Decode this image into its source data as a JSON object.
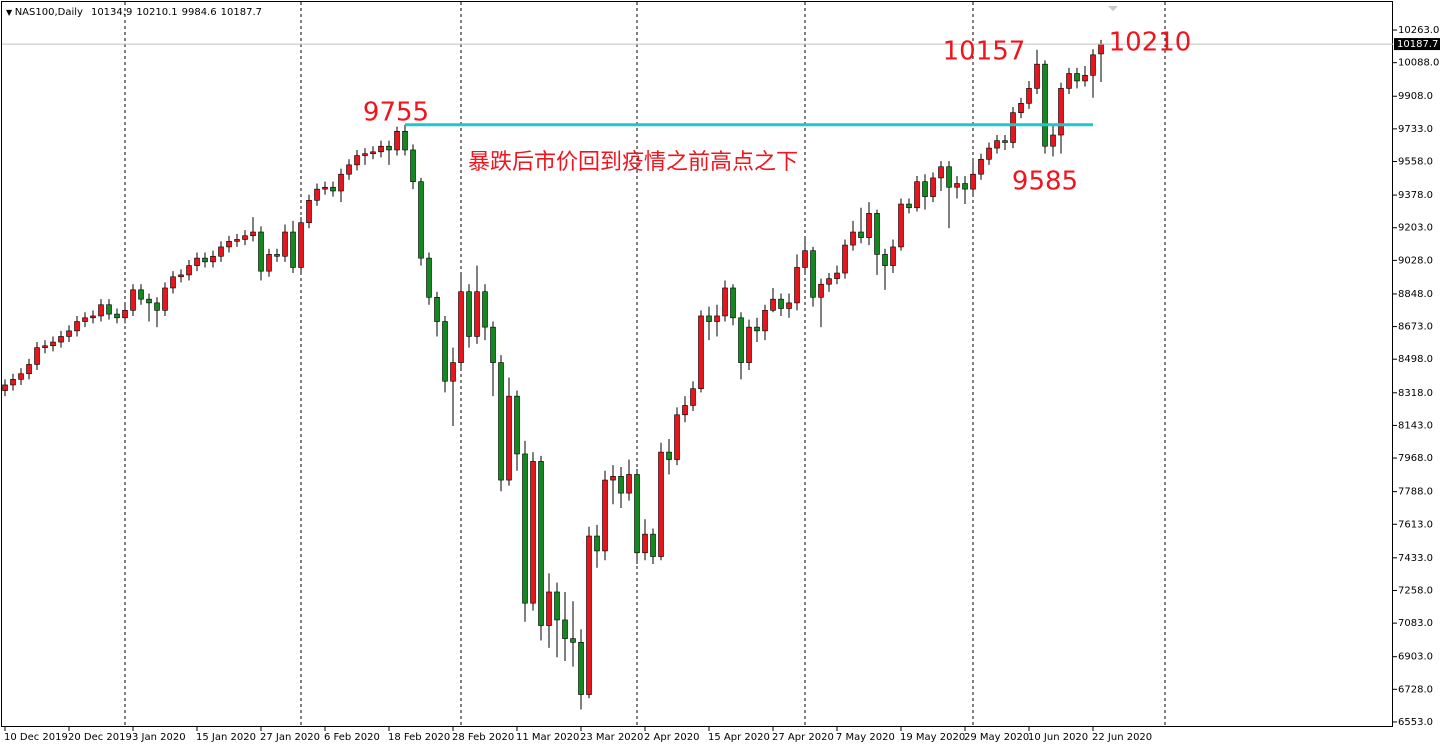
{
  "chart_data": {
    "type": "candlestick",
    "symbol": "NAS100,Daily",
    "categories": [
      "10 Dec 2019",
      null,
      null,
      null,
      null,
      null,
      null,
      null,
      "20 Dec 2019",
      null,
      null,
      null,
      null,
      null,
      null,
      null,
      "3 Jan 2020",
      null,
      null,
      null,
      null,
      null,
      null,
      null,
      "15 Jan 2020",
      null,
      null,
      null,
      null,
      null,
      null,
      null,
      "27 Jan 2020",
      null,
      null,
      null,
      null,
      null,
      null,
      null,
      "6 Feb 2020",
      null,
      null,
      null,
      null,
      null,
      null,
      null,
      "18 Feb 2020",
      null,
      null,
      null,
      null,
      null,
      null,
      null,
      "28 Feb 2020",
      null,
      null,
      null,
      null,
      null,
      null,
      null,
      "11 Mar 2020",
      null,
      null,
      null,
      null,
      null,
      null,
      null,
      "23 Mar 2020",
      null,
      null,
      null,
      null,
      null,
      null,
      null,
      "2 Apr 2020",
      null,
      null,
      null,
      null,
      null,
      null,
      null,
      "15 Apr 2020",
      null,
      null,
      null,
      null,
      null,
      null,
      null,
      "27 Apr 2020",
      null,
      null,
      null,
      null,
      null,
      null,
      null,
      "7 May 2020",
      null,
      null,
      null,
      null,
      null,
      null,
      null,
      "19 May 2020",
      null,
      null,
      null,
      null,
      null,
      null,
      null,
      "29 May 2020",
      null,
      null,
      null,
      null,
      null,
      null,
      null,
      "10 Jun 2020",
      null,
      null,
      null,
      null,
      null,
      null,
      null,
      "22 Jun 2020",
      null
    ],
    "open": [
      8330,
      8360,
      8390,
      8420,
      8470,
      8560,
      8570,
      8590,
      8620,
      8650,
      8700,
      8720,
      8730,
      8790,
      8740,
      8720,
      8760,
      8870,
      8820,
      8800,
      8760,
      8880,
      8940,
      8950,
      9000,
      9040,
      9020,
      9050,
      9100,
      9130,
      9140,
      9160,
      9180,
      8970,
      9060,
      9050,
      9180,
      8990,
      9230,
      9350,
      9410,
      9420,
      9400,
      9490,
      9540,
      9590,
      9600,
      9610,
      9640,
      9620,
      9720,
      9620,
      9450,
      9040,
      8830,
      8700,
      8380,
      8480,
      8860,
      8620,
      8860,
      8670,
      8480,
      7850,
      8300,
      7990,
      7190,
      7950,
      7070,
      7250,
      7100,
      7000,
      6980,
      6700,
      7550,
      7470,
      7850,
      7870,
      7780,
      7880,
      7460,
      7560,
      7440,
      8000,
      7960,
      8200,
      8250,
      8340,
      8730,
      8700,
      8730,
      8880,
      8720,
      8480,
      8670,
      8650,
      8760,
      8820,
      8770,
      8800,
      8990,
      9080,
      8830,
      8900,
      8930,
      8960,
      9110,
      9180,
      9150,
      9280,
      9060,
      9000,
      9100,
      9330,
      9310,
      9450,
      9370,
      9470,
      9530,
      9420,
      9440,
      9410,
      9490,
      9570,
      9630,
      9670,
      9660,
      9820,
      9870,
      9950,
      10080,
      9640,
      9700,
      9950,
      10030,
      9990,
      10020,
      10134.9
    ],
    "high": [
      8390,
      8420,
      8450,
      8500,
      8590,
      8600,
      8620,
      8650,
      8680,
      8730,
      8750,
      8760,
      8820,
      8820,
      8770,
      8790,
      8900,
      8900,
      8850,
      8830,
      8910,
      8970,
      8980,
      9030,
      9070,
      9070,
      9080,
      9130,
      9160,
      9170,
      9190,
      9260,
      9210,
      9090,
      9090,
      9220,
      9240,
      9260,
      9380,
      9440,
      9450,
      9450,
      9520,
      9570,
      9620,
      9630,
      9640,
      9670,
      9670,
      9745,
      9755,
      9650,
      9470,
      9070,
      8860,
      8730,
      8560,
      8950,
      8900,
      9000,
      8900,
      8700,
      8520,
      8400,
      8330,
      8060,
      8000,
      7980,
      7350,
      7300,
      7250,
      7200,
      7050,
      7600,
      7610,
      7900,
      7930,
      7920,
      7960,
      7910,
      7640,
      7590,
      8050,
      8070,
      8240,
      8300,
      8380,
      8760,
      8780,
      8790,
      8920,
      8900,
      8750,
      8710,
      8720,
      8790,
      8880,
      8850,
      8850,
      9060,
      9150,
      9100,
      8930,
      8960,
      9000,
      9140,
      9240,
      9310,
      9340,
      9300,
      9090,
      9140,
      9360,
      9360,
      9480,
      9490,
      9500,
      9560,
      9560,
      9480,
      9480,
      9560,
      9600,
      9660,
      9700,
      9700,
      9850,
      9900,
      9990,
      10157,
      10100,
      9760,
      9980,
      10060,
      10060,
      10070,
      10160,
      10210.1
    ],
    "low": [
      8300,
      8330,
      8360,
      8390,
      8440,
      8530,
      8540,
      8560,
      8590,
      8620,
      8670,
      8690,
      8700,
      8710,
      8690,
      8690,
      8730,
      8790,
      8700,
      8670,
      8730,
      8850,
      8910,
      8920,
      8970,
      8990,
      8990,
      9020,
      9070,
      9100,
      9110,
      9130,
      8920,
      8940,
      9020,
      9020,
      8960,
      8960,
      9200,
      9320,
      9380,
      9370,
      9340,
      9460,
      9510,
      9540,
      9570,
      9580,
      9540,
      9590,
      9590,
      9410,
      9000,
      8790,
      8620,
      8320,
      8140,
      8450,
      8560,
      8580,
      8600,
      8300,
      7790,
      7820,
      7900,
      7090,
      7150,
      6990,
      6950,
      6900,
      6880,
      6850,
      6620,
      6680,
      7380,
      7420,
      7720,
      7700,
      7740,
      7400,
      7420,
      7400,
      7420,
      7880,
      7930,
      8160,
      8220,
      8320,
      8600,
      8620,
      8700,
      8680,
      8390,
      8440,
      8590,
      8600,
      8750,
      8730,
      8720,
      8760,
      8950,
      8780,
      8670,
      8860,
      8900,
      8930,
      9080,
      9120,
      9110,
      8950,
      8870,
      8960,
      9080,
      9280,
      9290,
      9300,
      9340,
      9400,
      9200,
      9360,
      9330,
      9380,
      9460,
      9540,
      9600,
      9620,
      9630,
      9790,
      9840,
      9920,
      9600,
      9585,
      9600,
      9920,
      9950,
      9960,
      9900,
      9984.6
    ],
    "close": [
      8360,
      8390,
      8420,
      8470,
      8560,
      8570,
      8590,
      8620,
      8650,
      8700,
      8720,
      8730,
      8790,
      8740,
      8720,
      8760,
      8870,
      8820,
      8800,
      8760,
      8880,
      8940,
      8950,
      9000,
      9040,
      9020,
      9050,
      9100,
      9130,
      9140,
      9160,
      9180,
      8970,
      9060,
      9050,
      9180,
      8990,
      9230,
      9350,
      9410,
      9420,
      9400,
      9490,
      9540,
      9590,
      9600,
      9610,
      9640,
      9620,
      9720,
      9620,
      9450,
      9040,
      8830,
      8700,
      8380,
      8480,
      8860,
      8620,
      8860,
      8670,
      8480,
      7850,
      8300,
      7990,
      7190,
      7950,
      7070,
      7250,
      7100,
      7000,
      6980,
      6700,
      7550,
      7470,
      7850,
      7870,
      7780,
      7880,
      7460,
      7560,
      7440,
      8000,
      7960,
      8200,
      8250,
      8340,
      8730,
      8700,
      8730,
      8880,
      8720,
      8480,
      8670,
      8650,
      8760,
      8820,
      8770,
      8800,
      8990,
      9080,
      8830,
      8900,
      8930,
      8960,
      9110,
      9180,
      9150,
      9280,
      9060,
      9000,
      9100,
      9330,
      9310,
      9450,
      9370,
      9470,
      9530,
      9420,
      9440,
      9410,
      9490,
      9570,
      9630,
      9670,
      9660,
      9820,
      9870,
      9950,
      10080,
      9640,
      9700,
      9950,
      10030,
      9990,
      10020,
      10130,
      10187.7
    ],
    "up_color": "#e8161c",
    "down_color": "#13891f",
    "wick_color": "#000000",
    "ylim": [
      6526,
      10424
    ],
    "yticks": [
      {
        "value": 10263,
        "label": "10263.0"
      },
      {
        "value": 10088,
        "label": "10088.0"
      },
      {
        "value": 9908,
        "label": "9908.0"
      },
      {
        "value": 9733,
        "label": "9733.0"
      },
      {
        "value": 9558,
        "label": "9558.0"
      },
      {
        "value": 9378,
        "label": "9378.0"
      },
      {
        "value": 9203,
        "label": "9203.0"
      },
      {
        "value": 9028,
        "label": "9028.0"
      },
      {
        "value": 8848,
        "label": "8848.0"
      },
      {
        "value": 8673,
        "label": "8673.0"
      },
      {
        "value": 8498,
        "label": "8498.0"
      },
      {
        "value": 8318,
        "label": "8318.0"
      },
      {
        "value": 8143,
        "label": "8143.0"
      },
      {
        "value": 7968,
        "label": "7968.0"
      },
      {
        "value": 7788,
        "label": "7788.0"
      },
      {
        "value": 7613,
        "label": "7613.0"
      },
      {
        "value": 7433,
        "label": "7433.0"
      },
      {
        "value": 7258,
        "label": "7258.0"
      },
      {
        "value": 7083,
        "label": "7083.0"
      },
      {
        "value": 6903,
        "label": "6903.0"
      },
      {
        "value": 6728,
        "label": "6728.0"
      },
      {
        "value": 6553,
        "label": "6553.0"
      }
    ],
    "level": 9755,
    "level_color": "#1cc8c8",
    "annotations": [
      "9755",
      "10157",
      "10210",
      "9585",
      "暴跌后市价回到疫情之前高点之下"
    ],
    "annotation_color": "#f0141e"
  }
}
